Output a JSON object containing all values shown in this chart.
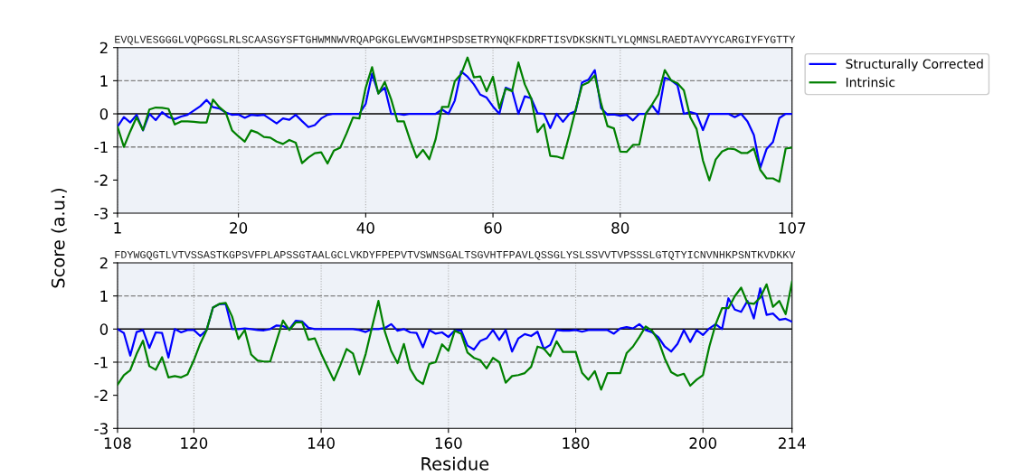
{
  "chart_data": [
    {
      "type": "line",
      "ylabel": "Score (a.u.)",
      "xlim": [
        1,
        107
      ],
      "xticks": [
        1,
        20,
        40,
        60,
        80,
        107
      ],
      "ylim": [
        -3,
        2
      ],
      "yticks": [
        -3,
        -2,
        -1,
        0,
        1,
        2
      ],
      "grid": "x",
      "legend": "top right",
      "marker": "none",
      "line_style": "solid",
      "annotations": [
        "EVQLVESGGGLVQPGGSLRLSCAASGYSFTGHWMNWVRQAPGKGLEWVGMIHPSDSETRYNQKFKDRFTISVDKSKNTLYLQMNSLRAEDTAVYYCARGIYFYGTTY"
      ],
      "ref_lines": [
        {
          "axis": "y",
          "value": 1,
          "color": "#808080",
          "line_style": "dashed"
        },
        {
          "axis": "y",
          "value": 0,
          "color": "#000000",
          "line_style": "solid"
        },
        {
          "axis": "y",
          "value": -1,
          "color": "#808080",
          "line_style": "dashed"
        }
      ],
      "series": [
        {
          "name": "Structurally Corrected",
          "color": "#0000ff",
          "x": [
            1,
            2,
            3,
            4,
            5,
            6,
            7,
            8,
            9,
            10,
            11,
            12,
            13,
            14,
            15,
            16,
            17,
            18,
            19,
            20,
            21,
            22,
            23,
            24,
            25,
            26,
            27,
            28,
            29,
            30,
            31,
            32,
            33,
            34,
            35,
            36,
            37,
            38,
            39,
            40,
            41,
            42,
            43,
            44,
            45,
            46,
            47,
            48,
            49,
            50,
            51,
            52,
            53,
            54,
            55,
            56,
            57,
            58,
            59,
            60,
            61,
            62,
            63,
            64,
            65,
            66,
            67,
            68,
            69,
            70,
            71,
            72,
            73,
            74,
            75,
            76,
            77,
            78,
            79,
            80,
            81,
            82,
            83,
            84,
            85,
            86,
            87,
            88,
            89,
            90,
            91,
            92,
            93,
            94,
            95,
            96,
            97,
            98,
            99,
            100,
            101,
            102,
            103,
            104,
            105,
            106,
            107
          ],
          "values": [
            -0.39,
            -0.1,
            -0.26,
            -0.03,
            -0.5,
            0,
            -0.19,
            0.05,
            -0.1,
            -0.16,
            -0.08,
            -0.03,
            0.1,
            0.23,
            0.42,
            0.2,
            0.16,
            0.04,
            -0.03,
            -0.02,
            -0.12,
            -0.03,
            -0.05,
            -0.03,
            -0.16,
            -0.29,
            -0.14,
            -0.18,
            -0.03,
            -0.22,
            -0.4,
            -0.34,
            -0.14,
            -0.03,
            0,
            0,
            0,
            0,
            0,
            0.3,
            1.21,
            0.62,
            0.79,
            0,
            0,
            -0.03,
            0,
            0,
            0,
            0,
            0,
            0.13,
            0,
            0.4,
            1.28,
            1.12,
            0.89,
            0.58,
            0.49,
            0.22,
            0,
            0.79,
            0.71,
            0,
            0.53,
            0.47,
            0.02,
            0,
            -0.43,
            0,
            -0.24,
            0,
            0.08,
            0.95,
            1.03,
            1.32,
            0.17,
            -0.03,
            -0.02,
            -0.06,
            -0.03,
            -0.2,
            0,
            0,
            0.26,
            0,
            1.09,
            1.01,
            0.86,
            0,
            0.05,
            0,
            -0.49,
            0,
            0,
            0,
            0,
            -0.1,
            0,
            -0.23,
            -0.64,
            -1.63,
            -1.06,
            -0.85,
            -0.13,
            0,
            0
          ]
        },
        {
          "name": "Intrinsic",
          "color": "#008000",
          "x": [
            1,
            2,
            3,
            4,
            5,
            6,
            7,
            8,
            9,
            10,
            11,
            12,
            13,
            14,
            15,
            16,
            17,
            18,
            19,
            20,
            21,
            22,
            23,
            24,
            25,
            26,
            27,
            28,
            29,
            30,
            31,
            32,
            33,
            34,
            35,
            36,
            37,
            38,
            39,
            40,
            41,
            42,
            43,
            44,
            45,
            46,
            47,
            48,
            49,
            50,
            51,
            52,
            53,
            54,
            55,
            56,
            57,
            58,
            59,
            60,
            61,
            62,
            63,
            64,
            65,
            66,
            67,
            68,
            69,
            70,
            71,
            72,
            73,
            74,
            75,
            76,
            77,
            78,
            79,
            80,
            81,
            82,
            83,
            84,
            85,
            86,
            87,
            88,
            89,
            90,
            91,
            92,
            93,
            94,
            95,
            96,
            97,
            98,
            99,
            100,
            101,
            102,
            103,
            104,
            105,
            106,
            107
          ],
          "values": [
            -0.39,
            -1.0,
            -0.53,
            -0.1,
            -0.49,
            0.13,
            0.19,
            0.18,
            0.15,
            -0.32,
            -0.23,
            -0.23,
            -0.24,
            -0.26,
            -0.26,
            0.43,
            0.2,
            0.04,
            -0.5,
            -0.68,
            -0.84,
            -0.5,
            -0.57,
            -0.7,
            -0.72,
            -0.84,
            -0.91,
            -0.79,
            -0.87,
            -1.49,
            -1.32,
            -1.19,
            -1.16,
            -1.5,
            -1.11,
            -1.02,
            -0.59,
            -0.11,
            -0.14,
            0.79,
            1.41,
            0.61,
            0.96,
            0.44,
            -0.23,
            -0.23,
            -0.81,
            -1.32,
            -1.09,
            -1.37,
            -0.76,
            0.21,
            0.21,
            0.98,
            1.2,
            1.7,
            1.1,
            1.13,
            0.68,
            1.12,
            0.17,
            0.76,
            0.68,
            1.55,
            0.89,
            0.47,
            -0.55,
            -0.31,
            -1.27,
            -1.29,
            -1.35,
            -0.64,
            0.13,
            0.86,
            0.95,
            1.16,
            0.31,
            -0.37,
            -0.44,
            -1.14,
            -1.15,
            -0.94,
            -0.93,
            0,
            0.28,
            0.59,
            1.32,
            1.01,
            0.92,
            0.71,
            -0.1,
            -0.46,
            -1.41,
            -2.01,
            -1.38,
            -1.14,
            -1.05,
            -1.07,
            -1.18,
            -1.18,
            -1.05,
            -1.69,
            -1.95,
            -1.95,
            -2.05,
            -1.05,
            -1.02
          ]
        }
      ]
    },
    {
      "type": "line",
      "xlabel": "Residue",
      "xlim": [
        108,
        214
      ],
      "xticks": [
        108,
        120,
        140,
        160,
        180,
        200,
        214
      ],
      "ylim": [
        -3,
        2
      ],
      "yticks": [
        -3,
        -2,
        -1,
        0,
        1,
        2
      ],
      "grid": "x",
      "marker": "none",
      "line_style": "solid",
      "annotations": [
        "FDYWGQGTLVTVSSASTKGPSVFPLAPSSGTAALGCLVKDYFPEPVTVSWNSGALTSGVHTFPAVLQSSGLYSLSSVVTVPSSSLGTQTYICNVNHKPSNTKVDKKV"
      ],
      "ref_lines": [
        {
          "axis": "y",
          "value": 1,
          "color": "#808080",
          "line_style": "dashed"
        },
        {
          "axis": "y",
          "value": 0,
          "color": "#000000",
          "line_style": "solid"
        },
        {
          "axis": "y",
          "value": -1,
          "color": "#808080",
          "line_style": "dashed"
        }
      ],
      "series": [
        {
          "color": "#0000ff",
          "x": [
            108,
            109,
            110,
            111,
            112,
            113,
            114,
            115,
            116,
            117,
            118,
            119,
            120,
            121,
            122,
            123,
            124,
            125,
            126,
            127,
            128,
            129,
            130,
            131,
            132,
            133,
            134,
            135,
            136,
            137,
            138,
            139,
            140,
            141,
            142,
            143,
            144,
            145,
            146,
            147,
            148,
            149,
            150,
            151,
            152,
            153,
            154,
            155,
            156,
            157,
            158,
            159,
            160,
            161,
            162,
            163,
            164,
            165,
            166,
            167,
            168,
            169,
            170,
            171,
            172,
            173,
            174,
            175,
            176,
            177,
            178,
            179,
            180,
            181,
            182,
            183,
            184,
            185,
            186,
            187,
            188,
            189,
            190,
            191,
            192,
            193,
            194,
            195,
            196,
            197,
            198,
            199,
            200,
            201,
            202,
            203,
            204,
            205,
            206,
            207,
            208,
            209,
            210,
            211,
            212,
            213,
            214
          ],
          "values": [
            0,
            -0.12,
            -0.8,
            -0.09,
            -0.03,
            -0.57,
            -0.1,
            -0.12,
            -0.86,
            0,
            -0.1,
            -0.03,
            -0.03,
            -0.21,
            -0.03,
            0.65,
            0.75,
            0.76,
            0,
            0,
            0.02,
            0,
            -0.03,
            -0.04,
            0,
            0.11,
            0.09,
            0,
            0.25,
            0.23,
            0.04,
            0,
            0,
            0,
            0,
            0,
            0,
            0,
            -0.03,
            -0.09,
            0,
            0,
            0.03,
            0.15,
            -0.05,
            0,
            -0.1,
            -0.12,
            -0.55,
            -0.03,
            -0.14,
            -0.1,
            -0.24,
            -0.04,
            -0.04,
            -0.5,
            -0.62,
            -0.36,
            -0.28,
            -0.03,
            -0.33,
            -0.03,
            -0.68,
            -0.28,
            -0.15,
            -0.21,
            -0.08,
            -0.6,
            -0.48,
            -0.03,
            -0.05,
            -0.05,
            -0.03,
            -0.08,
            -0.03,
            -0.03,
            -0.03,
            -0.03,
            -0.14,
            0.02,
            0.06,
            0.02,
            0.15,
            -0.03,
            -0.1,
            -0.25,
            -0.53,
            -0.68,
            -0.45,
            -0.03,
            -0.39,
            -0.03,
            -0.18,
            0.02,
            0.15,
            0,
            0.93,
            0.59,
            0.52,
            0.85,
            0.32,
            1.23,
            0.43,
            0.47,
            0.28,
            0.31,
            0.22
          ]
        },
        {
          "color": "#008000",
          "x": [
            108,
            109,
            110,
            111,
            112,
            113,
            114,
            115,
            116,
            117,
            118,
            119,
            120,
            121,
            122,
            123,
            124,
            125,
            126,
            127,
            128,
            129,
            130,
            131,
            132,
            133,
            134,
            135,
            136,
            137,
            138,
            139,
            140,
            141,
            142,
            143,
            144,
            145,
            146,
            147,
            148,
            149,
            150,
            151,
            152,
            153,
            154,
            155,
            156,
            157,
            158,
            159,
            160,
            161,
            162,
            163,
            164,
            165,
            166,
            167,
            168,
            169,
            170,
            171,
            172,
            173,
            174,
            175,
            176,
            177,
            178,
            179,
            180,
            181,
            182,
            183,
            184,
            185,
            186,
            187,
            188,
            189,
            190,
            191,
            192,
            193,
            194,
            195,
            196,
            197,
            198,
            199,
            200,
            201,
            202,
            203,
            204,
            205,
            206,
            207,
            208,
            209,
            210,
            211,
            212,
            213,
            214
          ],
          "values": [
            -1.68,
            -1.39,
            -1.24,
            -0.75,
            -0.35,
            -1.12,
            -1.23,
            -0.85,
            -1.46,
            -1.42,
            -1.46,
            -1.37,
            -0.94,
            -0.44,
            -0.03,
            0.65,
            0.76,
            0.79,
            0.38,
            -0.3,
            -0.03,
            -0.77,
            -0.95,
            -0.98,
            -0.98,
            -0.35,
            0.26,
            -0.03,
            0.2,
            0.21,
            -0.32,
            -0.28,
            -0.74,
            -1.15,
            -1.55,
            -1.1,
            -0.6,
            -0.74,
            -1.37,
            -0.75,
            0.06,
            0.85,
            -0.07,
            -0.66,
            -1.03,
            -0.45,
            -1.21,
            -1.53,
            -1.66,
            -1.05,
            -1.0,
            -0.46,
            -0.66,
            -0.05,
            -0.14,
            -0.71,
            -0.87,
            -0.94,
            -1.19,
            -0.87,
            -1.0,
            -1.62,
            -1.42,
            -1.39,
            -1.33,
            -1.14,
            -0.53,
            -0.59,
            -0.82,
            -0.37,
            -0.69,
            -0.69,
            -0.69,
            -1.32,
            -1.53,
            -1.27,
            -1.83,
            -1.33,
            -1.33,
            -1.33,
            -0.73,
            -0.53,
            -0.24,
            0.08,
            -0.05,
            -0.35,
            -0.89,
            -1.3,
            -1.41,
            -1.35,
            -1.71,
            -1.53,
            -1.39,
            -0.53,
            0.15,
            0.63,
            0.63,
            0.99,
            1.25,
            0.79,
            0.76,
            0.95,
            1.35,
            0.67,
            0.85,
            0.45,
            1.43
          ]
        }
      ]
    }
  ]
}
